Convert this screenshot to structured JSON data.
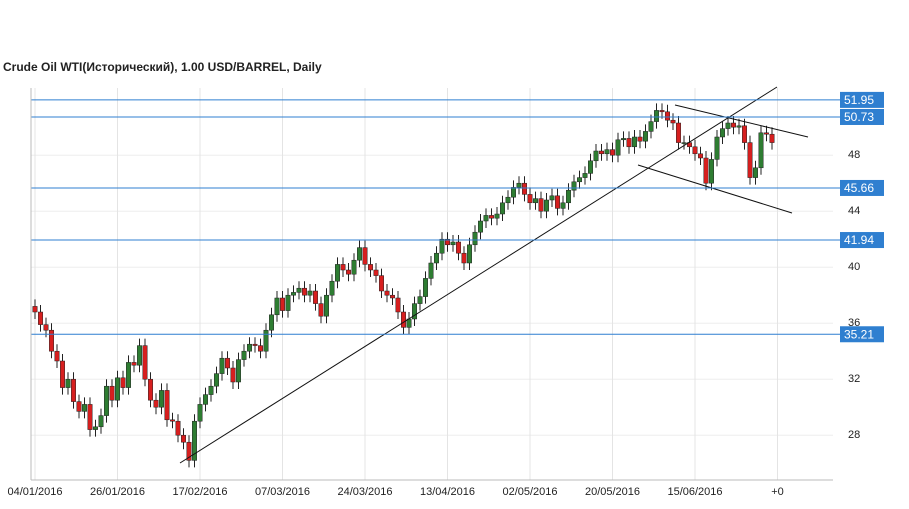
{
  "chart_data": {
    "type": "candlestick",
    "title": "Crude Oil WTI(Исторический), 1.00 USD/BARREL, Daily",
    "categories": [
      "04/01/2016",
      null,
      null,
      null,
      null,
      null,
      null,
      null,
      null,
      null,
      null,
      null,
      null,
      null,
      null,
      "26/01/2016",
      null,
      null,
      null,
      null,
      null,
      null,
      null,
      null,
      null,
      null,
      null,
      null,
      null,
      null,
      "17/02/2016",
      null,
      null,
      null,
      null,
      null,
      null,
      null,
      null,
      null,
      null,
      null,
      null,
      null,
      null,
      "07/03/2016",
      null,
      null,
      null,
      null,
      null,
      null,
      null,
      null,
      null,
      null,
      null,
      null,
      null,
      null,
      "24/03/2016",
      null,
      null,
      null,
      null,
      null,
      null,
      null,
      null,
      null,
      null,
      null,
      null,
      null,
      null,
      "13/04/2016",
      null,
      null,
      null,
      null,
      null,
      null,
      null,
      null,
      null,
      null,
      null,
      null,
      null,
      null,
      "02/05/2016",
      null,
      null,
      null,
      null,
      null,
      null,
      null,
      null,
      null,
      null,
      null,
      null,
      null,
      null,
      "20/05/2016",
      null,
      null,
      null,
      null,
      null,
      null,
      null,
      null,
      null,
      null,
      null,
      null,
      null,
      null,
      "15/06/2016",
      null,
      null,
      null,
      null,
      null,
      null,
      null,
      null,
      null,
      null,
      null,
      null,
      null,
      null,
      "+0"
    ],
    "open": [
      37.2,
      36.8,
      35.9,
      35.5,
      34.0,
      33.3,
      31.4,
      32.0,
      30.4,
      29.7,
      30.2,
      28.4,
      28.6,
      29.4,
      31.5,
      30.5,
      32.1,
      31.4,
      33.2,
      33.0,
      34.4,
      32.0,
      30.5,
      30.0,
      31.2,
      29.1,
      29.0,
      28.0,
      27.5,
      26.2,
      29.0,
      30.2,
      30.9,
      31.5,
      32.4,
      33.5,
      32.8,
      31.8,
      33.4,
      34.0,
      34.5,
      34.4,
      34.0,
      35.5,
      36.6,
      37.8,
      36.9,
      38.0,
      38.2,
      38.5,
      38.0,
      38.3,
      37.4,
      36.5,
      38.0,
      39.0,
      40.2,
      39.8,
      39.5,
      40.5,
      41.4,
      40.2,
      39.8,
      39.4,
      38.3,
      38.0,
      37.8,
      36.8,
      35.7,
      36.3,
      37.4,
      37.9,
      39.2,
      40.3,
      41.0,
      42.0,
      41.6,
      41.8,
      41.0,
      40.3,
      41.6,
      42.5,
      43.3,
      43.7,
      43.5,
      43.8,
      44.6,
      45.0,
      45.7,
      46.0,
      45.2,
      44.6,
      44.9,
      44.0,
      44.8,
      45.1,
      44.2,
      44.6,
      45.5,
      46.1,
      46.4,
      46.7,
      47.6,
      48.3,
      48.1,
      48.4,
      48.0,
      49.1,
      49.2,
      48.6,
      49.3,
      49.0,
      49.7,
      50.4,
      51.2,
      51.1,
      50.5,
      50.3,
      48.9,
      48.9,
      48.6,
      48.1,
      47.8,
      46.0,
      47.7,
      49.3,
      49.9,
      50.3,
      50.0,
      50.1,
      48.9,
      46.4,
      47.1,
      49.6,
      49.5,
      null
    ],
    "high": [
      37.7,
      37.3,
      36.4,
      36.0,
      34.5,
      33.8,
      32.5,
      32.5,
      30.9,
      30.7,
      30.7,
      29.1,
      29.9,
      32.0,
      32.0,
      32.6,
      32.6,
      33.7,
      33.7,
      34.9,
      34.9,
      32.5,
      31.0,
      31.7,
      31.7,
      29.6,
      29.5,
      28.5,
      28.0,
      29.5,
      30.7,
      31.4,
      32.0,
      32.9,
      34.0,
      34.0,
      33.3,
      33.9,
      34.5,
      35.0,
      35.0,
      34.9,
      36.0,
      37.1,
      38.3,
      38.3,
      38.5,
      38.7,
      39.0,
      39.0,
      38.8,
      38.8,
      37.9,
      38.5,
      39.5,
      40.7,
      40.7,
      40.3,
      41.0,
      41.9,
      41.9,
      40.7,
      40.3,
      39.9,
      38.8,
      38.5,
      38.3,
      37.3,
      36.8,
      37.9,
      38.4,
      39.7,
      40.8,
      41.5,
      42.5,
      42.5,
      42.3,
      42.3,
      41.5,
      42.1,
      43.0,
      43.8,
      44.2,
      44.2,
      44.3,
      45.1,
      45.5,
      46.2,
      46.5,
      46.5,
      45.7,
      45.4,
      45.4,
      45.3,
      45.6,
      45.6,
      45.1,
      46.0,
      46.6,
      46.9,
      47.2,
      48.1,
      48.8,
      48.8,
      48.9,
      48.9,
      49.6,
      49.7,
      49.7,
      49.8,
      49.8,
      50.2,
      50.9,
      51.7,
      51.7,
      51.6,
      51.0,
      50.8,
      49.4,
      49.4,
      49.1,
      48.6,
      48.3,
      48.2,
      49.8,
      50.4,
      50.8,
      50.8,
      50.6,
      50.6,
      49.4,
      47.6,
      50.1,
      50.1,
      50.0,
      null
    ],
    "low": [
      36.3,
      35.4,
      35.0,
      33.5,
      32.8,
      30.9,
      30.9,
      29.9,
      29.2,
      29.2,
      27.9,
      27.9,
      28.1,
      28.9,
      30.0,
      30.0,
      30.9,
      30.9,
      32.5,
      32.5,
      31.5,
      30.0,
      29.5,
      29.5,
      28.6,
      28.5,
      27.5,
      27.0,
      25.7,
      25.7,
      28.5,
      29.7,
      30.4,
      31.0,
      31.9,
      32.3,
      31.3,
      31.3,
      32.9,
      33.5,
      33.9,
      33.5,
      33.5,
      35.0,
      36.1,
      36.4,
      36.4,
      37.5,
      37.7,
      37.5,
      37.5,
      36.9,
      36.0,
      36.0,
      37.5,
      38.5,
      39.3,
      39.0,
      39.0,
      40.0,
      39.7,
      39.3,
      38.9,
      37.8,
      37.5,
      37.3,
      36.3,
      35.2,
      35.2,
      35.8,
      36.9,
      37.4,
      38.7,
      39.8,
      40.5,
      41.1,
      41.1,
      40.5,
      39.8,
      39.8,
      41.1,
      42.0,
      42.8,
      43.0,
      43.0,
      43.3,
      44.1,
      44.5,
      45.2,
      44.7,
      44.1,
      44.1,
      43.5,
      43.5,
      44.3,
      43.7,
      43.7,
      44.1,
      45.0,
      45.6,
      45.9,
      46.2,
      47.1,
      47.6,
      47.6,
      47.5,
      47.5,
      48.6,
      48.1,
      48.1,
      48.5,
      48.5,
      49.2,
      49.9,
      50.6,
      50.0,
      49.8,
      48.4,
      48.4,
      48.1,
      47.6,
      47.3,
      45.5,
      45.5,
      47.2,
      48.8,
      49.4,
      49.5,
      49.5,
      48.4,
      45.9,
      45.9,
      46.6,
      49.0,
      48.4,
      null
    ],
    "close": [
      36.8,
      35.9,
      35.5,
      34.0,
      33.3,
      31.4,
      32.0,
      30.4,
      29.7,
      30.2,
      28.4,
      28.6,
      29.4,
      31.5,
      30.5,
      32.1,
      31.4,
      33.2,
      33.0,
      34.4,
      32.0,
      30.5,
      30.0,
      31.2,
      29.1,
      29.0,
      28.0,
      27.5,
      26.2,
      29.0,
      30.2,
      30.9,
      31.5,
      32.4,
      33.5,
      32.8,
      31.8,
      33.4,
      34.0,
      34.5,
      34.4,
      34.0,
      35.5,
      36.6,
      37.8,
      36.9,
      38.0,
      38.2,
      38.5,
      38.0,
      38.3,
      37.4,
      36.5,
      38.0,
      39.0,
      40.2,
      39.8,
      39.5,
      40.5,
      41.4,
      40.2,
      39.8,
      39.4,
      38.3,
      38.0,
      37.8,
      36.8,
      35.7,
      36.3,
      37.4,
      37.9,
      39.2,
      40.3,
      41.0,
      42.0,
      41.6,
      41.8,
      41.0,
      40.3,
      41.6,
      42.5,
      43.3,
      43.7,
      43.5,
      43.8,
      44.6,
      45.0,
      45.7,
      46.0,
      45.2,
      44.6,
      44.9,
      44.0,
      44.8,
      45.1,
      44.2,
      44.6,
      45.5,
      46.1,
      46.4,
      46.7,
      47.6,
      48.3,
      48.1,
      48.4,
      48.0,
      49.1,
      49.2,
      48.6,
      49.3,
      49.0,
      49.7,
      50.4,
      51.2,
      51.1,
      50.5,
      50.3,
      48.9,
      48.9,
      48.6,
      48.1,
      47.8,
      46.0,
      47.7,
      49.3,
      49.9,
      50.3,
      50.0,
      50.1,
      48.9,
      46.4,
      47.1,
      49.6,
      49.5,
      48.9,
      null
    ],
    "up_color": "#2e7d32",
    "down_color": "#d71f1f",
    "ylim": [
      24.8,
      52.8
    ],
    "yticks": [
      28,
      32,
      36,
      40,
      44,
      48
    ],
    "levels": [
      51.95,
      50.73,
      45.66,
      41.94,
      35.21
    ],
    "level_color": "#2f7fd0",
    "grid": true
  }
}
